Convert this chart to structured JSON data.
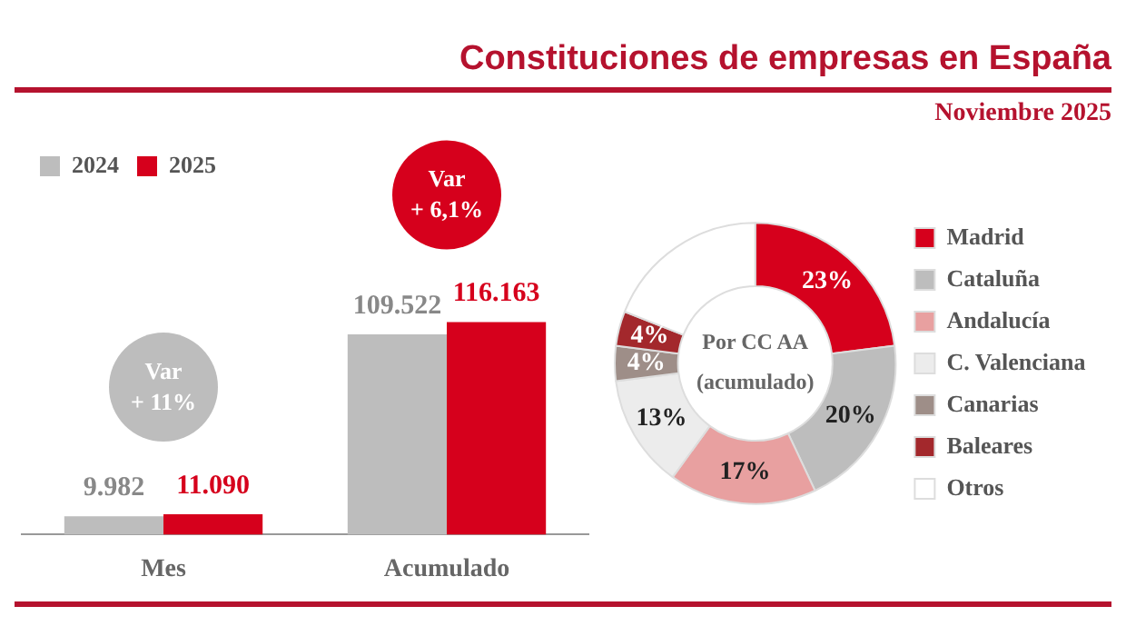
{
  "chart_data": [
    {
      "type": "bar",
      "title": "Constituciones de empresas en España",
      "categories": [
        "Mes",
        "Acumulado"
      ],
      "series": [
        {
          "name": "2024",
          "color": "#bdbdbd",
          "values": [
            9982,
            109522
          ],
          "value_labels": [
            "9.982",
            "109.522"
          ]
        },
        {
          "name": "2025",
          "color": "#d6001c",
          "values": [
            11090,
            116163
          ],
          "value_labels": [
            "11.090",
            "116.163"
          ]
        }
      ],
      "annotations": [
        "Var + 11%",
        "Var + 6,1%"
      ],
      "legend": "top left"
    },
    {
      "type": "donut",
      "title": "Noviembre 2025",
      "categories": [
        "Madrid",
        "Cataluña",
        "Andalucía",
        "C. Valenciana",
        "Canarias",
        "Baleares",
        "Otros"
      ],
      "values": [
        23,
        20,
        17,
        13,
        4,
        4,
        19
      ],
      "colors": [
        "#d6001c",
        "#bdbdbd",
        "#e8a0a0",
        "#ececec",
        "#9e8e88",
        "#a3282c",
        "#ffffff"
      ],
      "value_labels": [
        "23%",
        "20%",
        "17%",
        "13%",
        "4%",
        "4%",
        null
      ],
      "annotations": [
        "Por CC AA (acumulado)"
      ],
      "legend": "right"
    }
  ]
}
